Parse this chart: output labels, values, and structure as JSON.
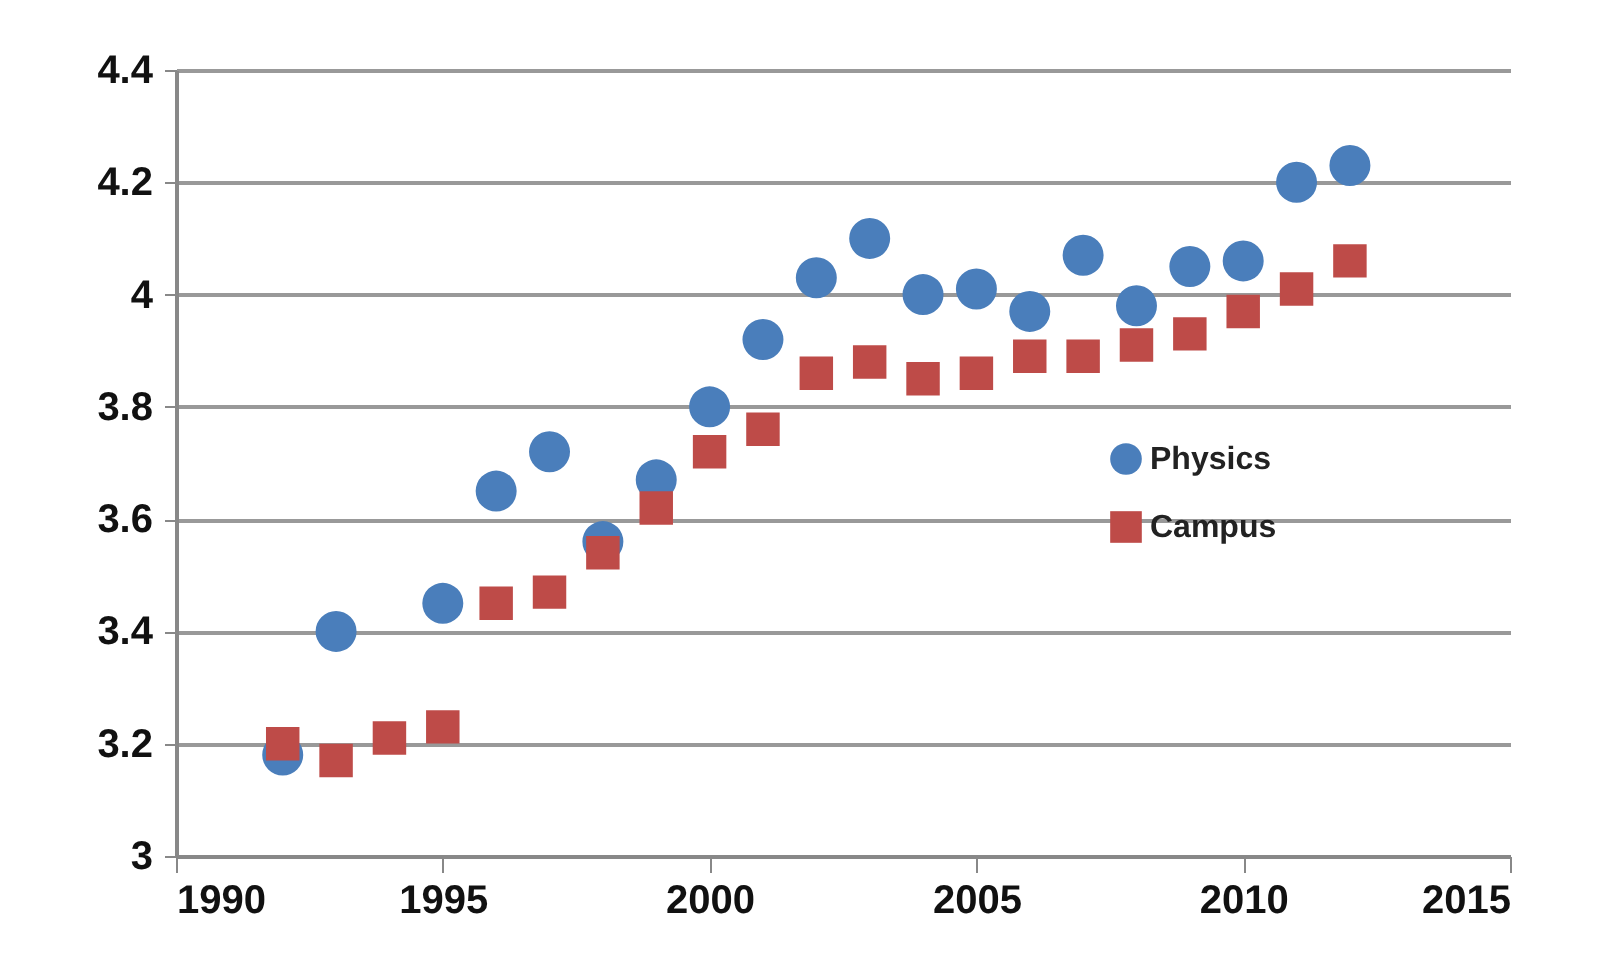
{
  "chart_data": {
    "type": "scatter",
    "xlim": [
      1990,
      2015
    ],
    "xticks": [
      1990,
      1995,
      2000,
      2005,
      2010,
      2015
    ],
    "ylim": [
      3,
      4.4
    ],
    "yticks": [
      3,
      3.2,
      3.4,
      3.6,
      3.8,
      4,
      4.2,
      4.4
    ],
    "grid": "y",
    "legend": "right",
    "series": [
      {
        "name": "Physics",
        "color": "#4a7ebb",
        "marker": "circle",
        "x": [
          1992,
          1993,
          1995,
          1996,
          1997,
          1998,
          1999,
          2000,
          2001,
          2002,
          2003,
          2004,
          2005,
          2006,
          2007,
          2008,
          2009,
          2010,
          2011,
          2012
        ],
        "values": [
          3.18,
          3.4,
          3.45,
          3.65,
          3.72,
          3.56,
          3.67,
          3.8,
          3.92,
          4.03,
          4.1,
          4.0,
          4.01,
          3.97,
          4.07,
          3.98,
          4.05,
          4.06,
          4.2,
          4.23
        ]
      },
      {
        "name": "Campus",
        "color": "#be4b48",
        "marker": "square",
        "x": [
          1992,
          1993,
          1994,
          1995,
          1996,
          1997,
          1998,
          1999,
          2000,
          2001,
          2002,
          2003,
          2004,
          2005,
          2006,
          2007,
          2008,
          2009,
          2010,
          2011,
          2012
        ],
        "values": [
          3.2,
          3.17,
          3.21,
          3.23,
          3.45,
          3.47,
          3.54,
          3.62,
          3.72,
          3.76,
          3.86,
          3.88,
          3.85,
          3.86,
          3.89,
          3.89,
          3.91,
          3.93,
          3.97,
          4.01,
          4.06
        ]
      }
    ]
  }
}
